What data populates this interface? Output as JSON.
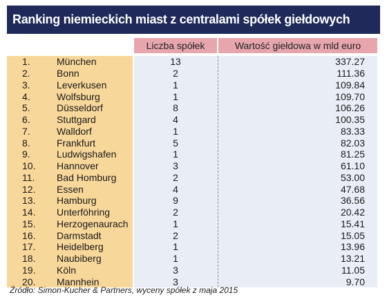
{
  "title": "Ranking niemieckich miast z centralami spółek giełdowych",
  "headers": {
    "count": "Liczba spółek",
    "value": "Wartość giełdowa w mld euro"
  },
  "rows": [
    {
      "rank": "1.",
      "city": "München",
      "count": "13",
      "value": "337.27"
    },
    {
      "rank": "2.",
      "city": "Bonn",
      "count": "2",
      "value": "111.36"
    },
    {
      "rank": "3.",
      "city": "Leverkusen",
      "count": "1",
      "value": "109.84"
    },
    {
      "rank": "4.",
      "city": "Wolfsburg",
      "count": "1",
      "value": "109.70"
    },
    {
      "rank": "5.",
      "city": "Düsseldorf",
      "count": "8",
      "value": "106.26"
    },
    {
      "rank": "6.",
      "city": "Stuttgard",
      "count": "4",
      "value": "100.35"
    },
    {
      "rank": "7.",
      "city": "Walldorf",
      "count": "1",
      "value": "83.33"
    },
    {
      "rank": "8.",
      "city": "Frankfurt",
      "count": "5",
      "value": "82.03"
    },
    {
      "rank": "9.",
      "city": "Ludwigshafen",
      "count": "1",
      "value": "81.25"
    },
    {
      "rank": "10.",
      "city": "Hannover",
      "count": "3",
      "value": "61.10"
    },
    {
      "rank": "11.",
      "city": "Bad Homburg",
      "count": "2",
      "value": "53.00"
    },
    {
      "rank": "12.",
      "city": "Essen",
      "count": "4",
      "value": "47.68"
    },
    {
      "rank": "13.",
      "city": "Hamburg",
      "count": "9",
      "value": "36.56"
    },
    {
      "rank": "14.",
      "city": "Unterföhring",
      "count": "2",
      "value": "20.42"
    },
    {
      "rank": "15.",
      "city": "Herzogenaurach",
      "count": "1",
      "value": "15.41"
    },
    {
      "rank": "16.",
      "city": "Darmstadt",
      "count": "2",
      "value": "15.05"
    },
    {
      "rank": "17.",
      "city": "Heidelberg",
      "count": "1",
      "value": "13.96"
    },
    {
      "rank": "18.",
      "city": "Naubiberg",
      "count": "1",
      "value": "13.21"
    },
    {
      "rank": "19.",
      "city": "Köln",
      "count": "3",
      "value": "11.05"
    },
    {
      "rank": "20.",
      "city": "Mannhein",
      "count": "3",
      "value": "9.70"
    }
  ],
  "source": "Źródło: Simon-Kucher & Partners, wyceny spółek z maja 2015",
  "colors": {
    "title_bg": "#1f2a5a",
    "header_bg": "#e7a6ae",
    "city_col_bg": "#f8d79a",
    "data_col_bg": "#e9eef6"
  }
}
